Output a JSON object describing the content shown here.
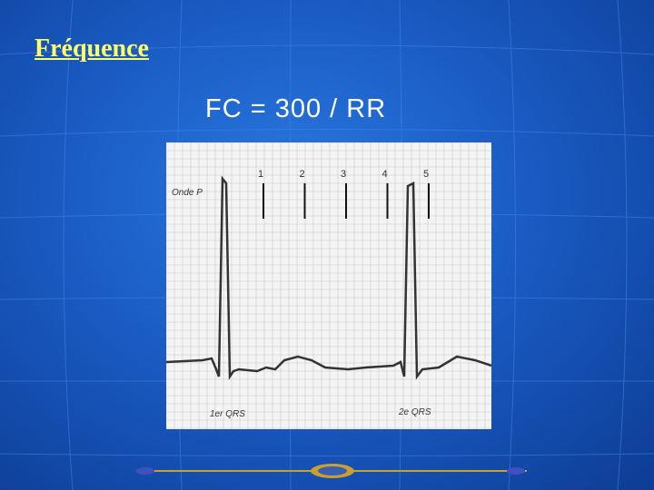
{
  "title": "Fréquence",
  "formula": "FC = 300 / RR",
  "ecg": {
    "wave_label": "Onde P",
    "markers": [
      "1",
      "2",
      "3",
      "4",
      "5"
    ],
    "first_qrs": "1er QRS",
    "second_qrs": "2e QRS"
  }
}
